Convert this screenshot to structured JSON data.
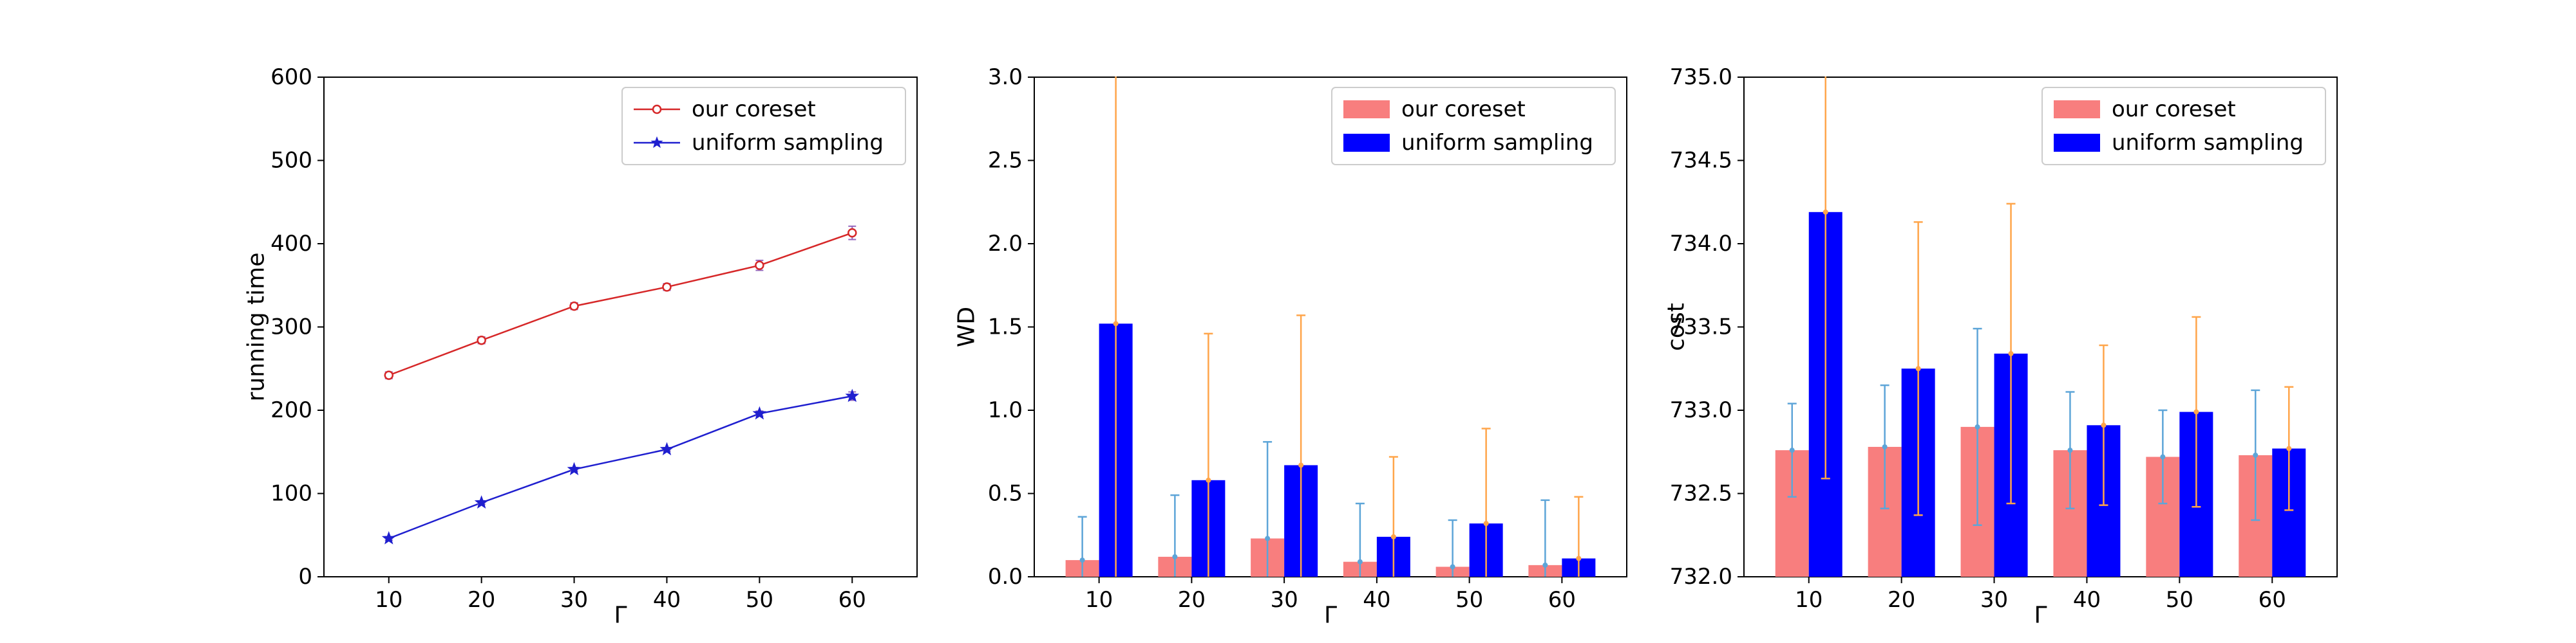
{
  "chart_data": [
    {
      "type": "line",
      "x": [
        10,
        20,
        30,
        40,
        50,
        60
      ],
      "xlabel": "Γ",
      "ylabel": "running time",
      "xticks": [
        "10",
        "20",
        "30",
        "40",
        "50",
        "60"
      ],
      "yticks": [
        "0",
        "100",
        "200",
        "300",
        "400",
        "500",
        "600"
      ],
      "ylim": [
        0,
        600
      ],
      "legend": "top-right",
      "series": [
        {
          "name": "our coreset",
          "values": [
            242,
            284,
            325,
            348,
            374,
            413
          ],
          "errors": [
            4,
            4,
            4,
            4,
            6,
            8
          ],
          "color": "#d62728",
          "marker": "circle"
        },
        {
          "name": "uniform sampling",
          "values": [
            46,
            89,
            129,
            153,
            196,
            217
          ],
          "errors": [
            2,
            2,
            2,
            2,
            3,
            5
          ],
          "color": "#1f1fcf",
          "marker": "star"
        }
      ]
    },
    {
      "type": "bar",
      "categories": [
        "10",
        "20",
        "30",
        "40",
        "50",
        "60"
      ],
      "xlabel": "Γ",
      "ylabel": "WD",
      "yticks": [
        "0.0",
        "0.5",
        "1.0",
        "1.5",
        "2.0",
        "2.5",
        "3.0"
      ],
      "ylim": [
        0,
        3.0
      ],
      "legend": "top-right",
      "series": [
        {
          "name": "our coreset",
          "values": [
            0.1,
            0.12,
            0.23,
            0.09,
            0.06,
            0.07
          ],
          "errors": [
            0.26,
            0.37,
            0.58,
            0.35,
            0.28,
            0.39
          ],
          "color": "#f87e7e",
          "error_color": "#5da5d8"
        },
        {
          "name": "uniform sampling",
          "values": [
            1.52,
            0.58,
            0.67,
            0.24,
            0.32,
            0.11
          ],
          "errors": [
            1.6,
            0.88,
            0.9,
            0.48,
            0.57,
            0.37
          ],
          "color": "#0000ff",
          "error_color": "#ffa54a"
        }
      ]
    },
    {
      "type": "bar",
      "categories": [
        "10",
        "20",
        "30",
        "40",
        "50",
        "60"
      ],
      "xlabel": "Γ",
      "ylabel": "cost",
      "yticks": [
        "732.0",
        "732.5",
        "733.0",
        "733.5",
        "734.0",
        "734.5",
        "735.0"
      ],
      "ylim": [
        732.0,
        735.0
      ],
      "legend": "top-right",
      "series": [
        {
          "name": "our coreset",
          "values": [
            732.76,
            732.78,
            732.9,
            732.76,
            732.72,
            732.73
          ],
          "errors": [
            0.28,
            0.37,
            0.59,
            0.35,
            0.28,
            0.39
          ],
          "color": "#f87e7e",
          "error_color": "#5da5d8"
        },
        {
          "name": "uniform sampling",
          "values": [
            734.19,
            733.25,
            733.34,
            732.91,
            732.99,
            732.77
          ],
          "errors": [
            1.6,
            0.88,
            0.9,
            0.48,
            0.57,
            0.37
          ],
          "color": "#0000ff",
          "error_color": "#ffa54a"
        }
      ]
    }
  ]
}
